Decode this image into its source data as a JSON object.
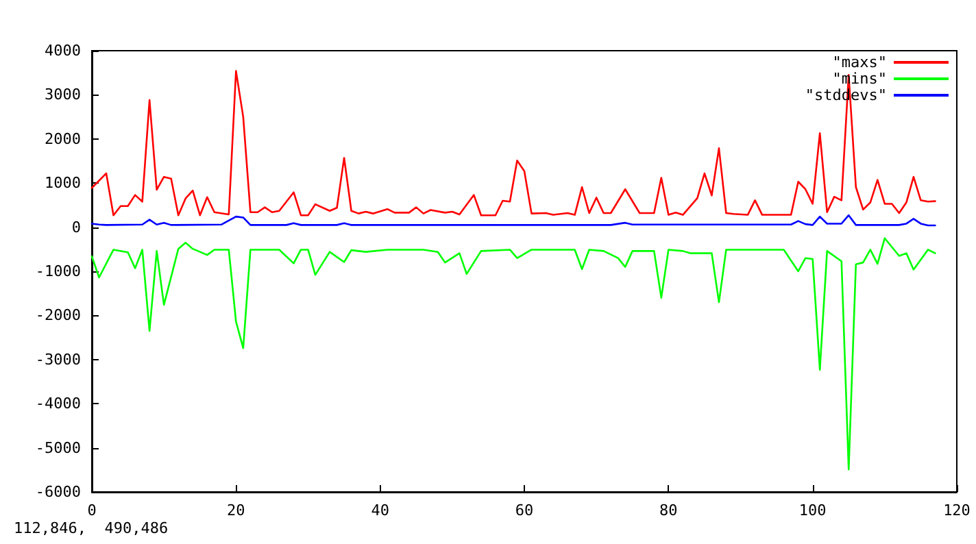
{
  "chart_data": {
    "type": "line",
    "xlim": [
      0,
      120
    ],
    "xticks": [
      0,
      20,
      40,
      60,
      80,
      100,
      120
    ],
    "ylim": [
      -6000,
      4000
    ],
    "yticks": [
      -6000,
      -5000,
      -4000,
      -3000,
      -2000,
      -1000,
      0,
      1000,
      2000,
      3000,
      4000
    ],
    "legend": "top right",
    "marker": "none",
    "line_style": "solid",
    "annotations": [
      "112,846,  490,486"
    ],
    "series": [
      {
        "name": "\"maxs\"",
        "color": "#ff0000",
        "x": [
          0,
          2,
          3,
          4,
          5,
          6,
          7,
          8,
          9,
          10,
          11,
          12,
          13,
          14,
          15,
          16,
          17,
          19,
          20,
          21,
          22,
          23,
          24,
          25,
          26,
          28,
          29,
          30,
          31,
          33,
          34,
          35,
          36,
          37,
          38,
          39,
          41,
          42,
          44,
          45,
          46,
          47,
          49,
          50,
          51,
          53,
          54,
          56,
          57,
          58,
          59,
          60,
          61,
          63,
          64,
          66,
          67,
          68,
          69,
          70,
          71,
          72,
          74,
          76,
          78,
          79,
          80,
          81,
          82,
          84,
          85,
          86,
          87,
          88,
          89,
          91,
          92,
          93,
          95,
          97,
          98,
          99,
          100,
          101,
          102,
          103,
          104,
          105,
          106,
          107,
          108,
          109,
          110,
          111,
          112,
          113,
          114,
          115,
          116,
          117
        ],
        "values": [
          890,
          1220,
          270,
          480,
          480,
          730,
          580,
          2880,
          850,
          1140,
          1100,
          270,
          650,
          830,
          270,
          680,
          340,
          290,
          3540,
          2500,
          340,
          340,
          450,
          340,
          370,
          790,
          270,
          270,
          520,
          370,
          440,
          1570,
          370,
          310,
          350,
          310,
          410,
          330,
          330,
          450,
          310,
          390,
          330,
          350,
          290,
          730,
          270,
          270,
          600,
          580,
          1510,
          1270,
          310,
          320,
          280,
          320,
          280,
          910,
          320,
          670,
          320,
          320,
          860,
          320,
          320,
          1120,
          280,
          330,
          280,
          660,
          1220,
          720,
          1790,
          320,
          300,
          280,
          610,
          280,
          280,
          280,
          1030,
          860,
          530,
          2130,
          340,
          690,
          610,
          3450,
          910,
          400,
          560,
          1070,
          530,
          530,
          320,
          560,
          1140,
          610,
          580,
          590
        ]
      },
      {
        "name": "\"mins\"",
        "color": "#00ff00",
        "x": [
          0,
          1,
          3,
          5,
          6,
          7,
          8,
          9,
          10,
          12,
          13,
          14,
          16,
          17,
          19,
          20,
          21,
          22,
          26,
          28,
          29,
          30,
          31,
          33,
          35,
          36,
          38,
          41,
          43,
          46,
          48,
          49,
          51,
          52,
          54,
          58,
          59,
          61,
          67,
          68,
          69,
          71,
          73,
          74,
          75,
          78,
          79,
          80,
          82,
          83,
          86,
          87,
          88,
          96,
          98,
          99,
          100,
          101,
          102,
          104,
          105,
          106,
          107,
          108,
          109,
          110,
          112,
          113,
          114,
          116,
          117
        ],
        "values": [
          -660,
          -1140,
          -510,
          -570,
          -930,
          -510,
          -2350,
          -540,
          -1760,
          -490,
          -350,
          -490,
          -630,
          -510,
          -510,
          -2140,
          -2740,
          -510,
          -510,
          -820,
          -510,
          -510,
          -1080,
          -560,
          -790,
          -520,
          -560,
          -510,
          -510,
          -510,
          -560,
          -800,
          -590,
          -1060,
          -540,
          -510,
          -700,
          -510,
          -510,
          -950,
          -510,
          -540,
          -700,
          -900,
          -540,
          -540,
          -1600,
          -510,
          -540,
          -590,
          -590,
          -1700,
          -510,
          -510,
          -1000,
          -700,
          -720,
          -3230,
          -540,
          -770,
          -5490,
          -840,
          -800,
          -510,
          -830,
          -250,
          -650,
          -590,
          -960,
          -510,
          -590
        ]
      },
      {
        "name": "\"stddevs\"",
        "color": "#0000ff",
        "x": [
          0,
          1,
          2,
          7,
          8,
          9,
          10,
          11,
          18,
          19,
          20,
          21,
          22,
          27,
          28,
          29,
          34,
          35,
          36,
          72,
          74,
          75,
          97,
          98,
          99,
          100,
          101,
          102,
          104,
          105,
          106,
          112,
          113,
          114,
          115,
          116,
          117
        ],
        "values": [
          80,
          60,
          50,
          60,
          170,
          60,
          100,
          50,
          60,
          150,
          240,
          220,
          50,
          50,
          90,
          50,
          50,
          90,
          50,
          50,
          100,
          60,
          60,
          140,
          70,
          50,
          240,
          80,
          80,
          270,
          50,
          50,
          80,
          190,
          80,
          40,
          40
        ]
      }
    ]
  }
}
